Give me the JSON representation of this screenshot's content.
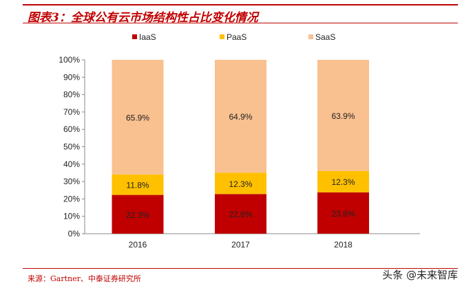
{
  "title": "图表3：全球公有云市场结构性占比变化情况",
  "source": "来源：Gartner、中泰证券研究所",
  "watermark": "头条 @未来智库",
  "chart_data": {
    "type": "bar",
    "stacked": true,
    "categories": [
      "2016",
      "2017",
      "2018"
    ],
    "series": [
      {
        "name": "IaaS",
        "values": [
          22.3,
          22.8,
          23.8
        ],
        "labels": [
          "22.3%",
          "22.8%",
          "23.8%"
        ],
        "color": "#c00000"
      },
      {
        "name": "PaaS",
        "values": [
          11.8,
          12.3,
          12.3
        ],
        "labels": [
          "11.8%",
          "12.3%",
          "12.3%"
        ],
        "color": "#ffc000"
      },
      {
        "name": "SaaS",
        "values": [
          65.9,
          64.9,
          63.9
        ],
        "labels": [
          "65.9%",
          "64.9%",
          "63.9%"
        ],
        "color": "#f9c090"
      }
    ],
    "yticks": [
      "0%",
      "10%",
      "20%",
      "30%",
      "40%",
      "50%",
      "60%",
      "70%",
      "80%",
      "90%",
      "100%"
    ],
    "ylim": [
      0,
      100
    ],
    "legend": "top",
    "grid": false
  }
}
